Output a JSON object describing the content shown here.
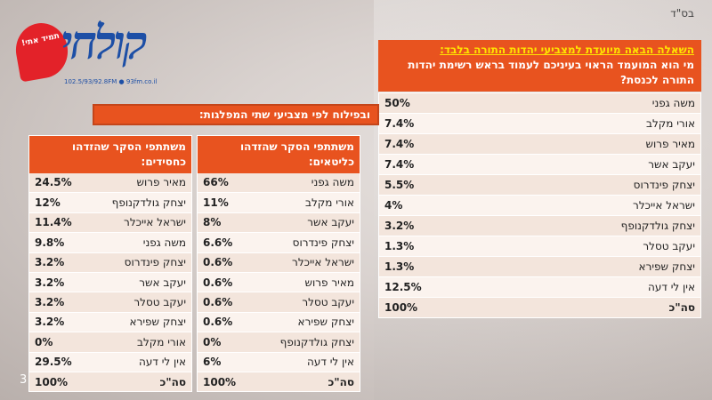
{
  "header": {
    "bsd": "בס\"ד"
  },
  "logo": {
    "tagline": "תמיד אתי!",
    "name": "קולחי",
    "freq": "102.5/93/92.8FM ● 93fm.co.il"
  },
  "question": {
    "line1": "השאלה הבאה מיועדת למצביעי יהדות התורה בלבד:",
    "line2": "מי הוא המועמד הראוי בעיניכם לעמוד בראש רשימת יהדות התורה לכנסת?"
  },
  "main_table": [
    {
      "label": "משה גפני",
      "value": "50%"
    },
    {
      "label": "אורי מקלב",
      "value": "7.4%"
    },
    {
      "label": "מאיר פרוש",
      "value": "7.4%"
    },
    {
      "label": "יעקב אשר",
      "value": "7.4%"
    },
    {
      "label": "יצחק פינדרוס",
      "value": "5.5%"
    },
    {
      "label": "ישראל אייכלר",
      "value": "4%"
    },
    {
      "label": "יצחק גולדקנופף",
      "value": "3.2%"
    },
    {
      "label": "יעקב טסלר",
      "value": "1.3%"
    },
    {
      "label": "יצחק שפירא",
      "value": "1.3%"
    },
    {
      "label": "אין לי דעה",
      "value": "12.5%"
    },
    {
      "label": "סה\"כ",
      "value": "100%"
    }
  ],
  "breakdown_title": "ובפילוח לפי מצביעי שתי המפלגות:",
  "litaim": {
    "header": "משתתפי הסקר שהזדהו כליטאים:",
    "rows": [
      {
        "label": "משה גפני",
        "value": "66%"
      },
      {
        "label": "אורי מקלב",
        "value": "11%"
      },
      {
        "label": "יעקב אשר",
        "value": "8%"
      },
      {
        "label": "יצחק פינדרוס",
        "value": "6.6%"
      },
      {
        "label": "ישראל אייכלר",
        "value": "0.6%"
      },
      {
        "label": "מאיר פרוש",
        "value": "0.6%"
      },
      {
        "label": "יעקב טסלר",
        "value": "0.6%"
      },
      {
        "label": "יצחק שפירא",
        "value": "0.6%"
      },
      {
        "label": "יצחק גולדקנופף",
        "value": "0%"
      },
      {
        "label": "אין לי דעה",
        "value": "6%"
      },
      {
        "label": "סה\"כ",
        "value": "100%"
      }
    ]
  },
  "hasidim": {
    "header": "משתתפי הסקר שהזדהו כחסידים:",
    "rows": [
      {
        "label": "מאיר פרוש",
        "value": "24.5%"
      },
      {
        "label": "יצחק גולדקנופף",
        "value": "12%"
      },
      {
        "label": "ישראל אייכלר",
        "value": "11.4%"
      },
      {
        "label": "משה גפני",
        "value": "9.8%"
      },
      {
        "label": "יצחק פינדרוס",
        "value": "3.2%"
      },
      {
        "label": "יעקב אשר",
        "value": "3.2%"
      },
      {
        "label": "יעקב טסלר",
        "value": "3.2%"
      },
      {
        "label": "יצחק שפירא",
        "value": "3.2%"
      },
      {
        "label": "אורי מקלב",
        "value": "0%"
      },
      {
        "label": "אין לי דעה",
        "value": "29.5%"
      },
      {
        "label": "סה\"כ",
        "value": "100%"
      }
    ]
  },
  "slide_number": "3"
}
